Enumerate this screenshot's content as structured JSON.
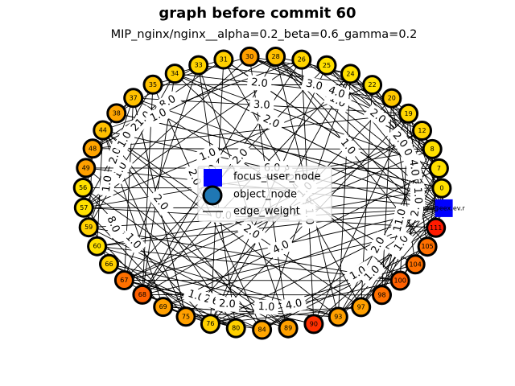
{
  "title": "graph before commit 60",
  "subtitle": "MIP_nginx/nginx__alpha=0.2_beta=0.6_gamma=0.2",
  "focus_node": {
    "label": "ppi@eex.ev.r",
    "color": "#0000ff"
  },
  "object_nodes": [
    {
      "id": "0",
      "color": "#ffe000"
    },
    {
      "id": "7",
      "color": "#ffe000"
    },
    {
      "id": "8",
      "color": "#ffe000"
    },
    {
      "id": "12",
      "color": "#ffd500"
    },
    {
      "id": "19",
      "color": "#ffd500"
    },
    {
      "id": "20",
      "color": "#ffc800"
    },
    {
      "id": "22",
      "color": "#ffe000"
    },
    {
      "id": "24",
      "color": "#ffe000"
    },
    {
      "id": "25",
      "color": "#ffe000"
    },
    {
      "id": "26",
      "color": "#ffd500"
    },
    {
      "id": "28",
      "color": "#ffc000"
    },
    {
      "id": "30",
      "color": "#ffa000"
    },
    {
      "id": "31",
      "color": "#ffd000"
    },
    {
      "id": "33",
      "color": "#ffd500"
    },
    {
      "id": "34",
      "color": "#ffd000"
    },
    {
      "id": "35",
      "color": "#ffc000"
    },
    {
      "id": "37",
      "color": "#ffc000"
    },
    {
      "id": "38",
      "color": "#ffa500"
    },
    {
      "id": "44",
      "color": "#ffc000"
    },
    {
      "id": "48",
      "color": "#ffa500"
    },
    {
      "id": "49",
      "color": "#ffa000"
    },
    {
      "id": "56",
      "color": "#ffe000"
    },
    {
      "id": "57",
      "color": "#ffe000"
    },
    {
      "id": "59",
      "color": "#ffd000"
    },
    {
      "id": "60",
      "color": "#ffe000"
    },
    {
      "id": "66",
      "color": "#ffd000"
    },
    {
      "id": "67",
      "color": "#ff7000"
    },
    {
      "id": "68",
      "color": "#ff6000"
    },
    {
      "id": "69",
      "color": "#ffa000"
    },
    {
      "id": "75",
      "color": "#ffa000"
    },
    {
      "id": "76",
      "color": "#ffd000"
    },
    {
      "id": "80",
      "color": "#ffd000"
    },
    {
      "id": "84",
      "color": "#ffa500"
    },
    {
      "id": "89",
      "color": "#ffa000"
    },
    {
      "id": "90",
      "color": "#ff3000"
    },
    {
      "id": "93",
      "color": "#ffa000"
    },
    {
      "id": "97",
      "color": "#ffa000"
    },
    {
      "id": "98",
      "color": "#ff7000"
    },
    {
      "id": "100",
      "color": "#ff6000"
    },
    {
      "id": "104",
      "color": "#ff7000"
    },
    {
      "id": "105",
      "color": "#ff7000"
    },
    {
      "id": "111",
      "color": "#ff1a00"
    }
  ],
  "edge_labels": [
    "8.0",
    "1.0",
    "1.0",
    "2.0",
    "1.0",
    "1.0",
    "2.0",
    "1.0",
    "3.0",
    "1.0",
    "2.0",
    "1.0",
    "7.0",
    "21.0",
    "2.0",
    "6.0",
    "1.0",
    "4.0",
    "2.0",
    "2.0",
    "1.0",
    "2.0",
    "1.0",
    "2.0",
    "4.0",
    "1.0",
    "3.0",
    "2.0",
    "11.0",
    "2.0",
    "8.0",
    "2.0",
    "1.0",
    "6.0",
    "4.0",
    "2.0",
    "1.0",
    "2.0",
    "1.0",
    "1.0",
    "4.0",
    "2.0",
    "0.0",
    "1.0",
    "2.0",
    "1.0",
    "2.0",
    "3.0"
  ],
  "legend": {
    "items": [
      {
        "label": "focus_user_node",
        "marker": "square",
        "color": "#0000ff"
      },
      {
        "label": "object_node",
        "marker": "circle",
        "color": "#1f77b4"
      },
      {
        "label": "edge_weight",
        "marker": "line",
        "color": "#000000"
      }
    ]
  }
}
